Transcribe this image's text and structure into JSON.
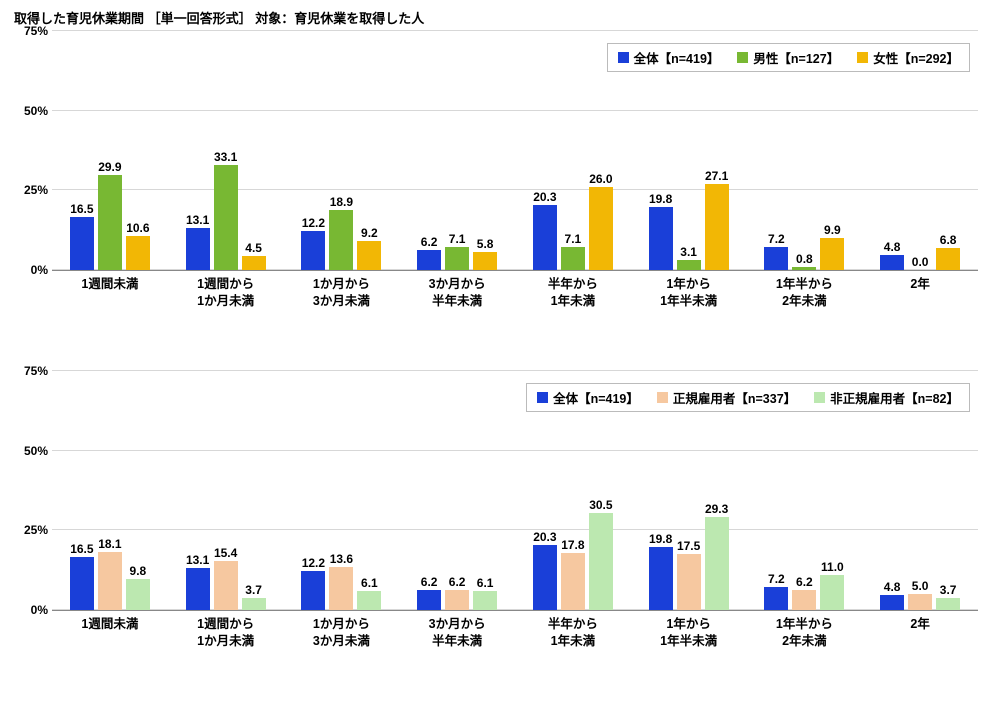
{
  "title": "取得した育児休業期間 ［単一回答形式］ 対象：育児休業を取得した人",
  "categories": [
    "1週間未満",
    "1週間から\n1か月未満",
    "1か月から\n3か月未満",
    "3か月から\n半年未満",
    "半年から\n1年未満",
    "1年から\n1年半未満",
    "1年半から\n2年未満",
    "2年"
  ],
  "yaxis": {
    "max": 75,
    "ticks": [
      0,
      25,
      50,
      75
    ]
  },
  "charts": [
    {
      "legend": [
        {
          "label": "全体【n=419】",
          "color": "#1a3fd8"
        },
        {
          "label": "男性【n=127】",
          "color": "#78b833"
        },
        {
          "label": "女性【n=292】",
          "color": "#f2b705"
        }
      ],
      "series": [
        {
          "color": "#1a3fd8",
          "values": [
            16.5,
            13.1,
            12.2,
            6.2,
            20.3,
            19.8,
            7.2,
            4.8
          ]
        },
        {
          "color": "#78b833",
          "values": [
            29.9,
            33.1,
            18.9,
            7.1,
            7.1,
            3.1,
            0.8,
            0.0
          ]
        },
        {
          "color": "#f2b705",
          "values": [
            10.6,
            4.5,
            9.2,
            5.8,
            26.0,
            27.1,
            9.9,
            6.8
          ]
        }
      ]
    },
    {
      "legend": [
        {
          "label": "全体【n=419】",
          "color": "#1a3fd8"
        },
        {
          "label": "正規雇用者【n=337】",
          "color": "#f6c8a0"
        },
        {
          "label": "非正規雇用者【n=82】",
          "color": "#bce8b0"
        }
      ],
      "series": [
        {
          "color": "#1a3fd8",
          "values": [
            16.5,
            13.1,
            12.2,
            6.2,
            20.3,
            19.8,
            7.2,
            4.8
          ]
        },
        {
          "color": "#f6c8a0",
          "values": [
            18.1,
            15.4,
            13.6,
            6.2,
            17.8,
            17.5,
            6.2,
            5.0
          ]
        },
        {
          "color": "#bce8b0",
          "values": [
            9.8,
            3.7,
            6.1,
            6.1,
            30.5,
            29.3,
            11.0,
            3.7
          ]
        }
      ]
    }
  ]
}
